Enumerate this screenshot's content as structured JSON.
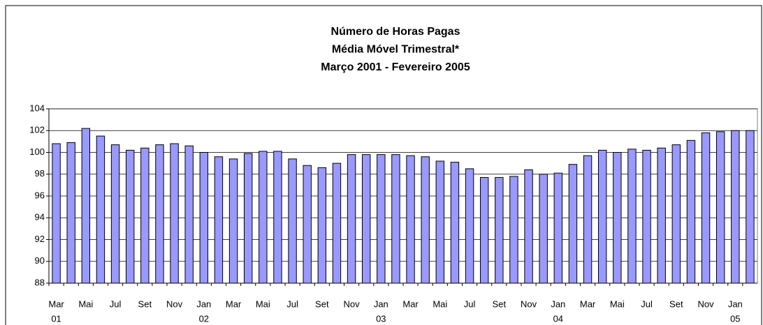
{
  "chart_data": {
    "type": "bar",
    "title_lines": [
      "Número de Horas Pagas",
      "Média Móvel Trimestral*",
      "Março 2001 - Fevereiro 2005"
    ],
    "categories": [
      "Mar",
      null,
      "Mai",
      null,
      "Jul",
      null,
      "Set",
      null,
      "Nov",
      null,
      "Jan",
      null,
      "Mar",
      null,
      "Mai",
      null,
      "Jul",
      null,
      "Set",
      null,
      "Nov",
      null,
      "Jan",
      null,
      "Mar",
      null,
      "Mai",
      null,
      "Jul",
      null,
      "Set",
      null,
      "Nov",
      null,
      "Jan",
      null,
      "Mar",
      null,
      "Mai",
      null,
      "Jul",
      null,
      "Set",
      null,
      "Nov",
      null,
      "Jan",
      null
    ],
    "category_years": [
      "01",
      null,
      null,
      null,
      null,
      null,
      null,
      null,
      null,
      null,
      "02",
      null,
      null,
      null,
      null,
      null,
      null,
      null,
      null,
      null,
      null,
      null,
      "03",
      null,
      null,
      null,
      null,
      null,
      null,
      null,
      null,
      null,
      null,
      null,
      "04",
      null,
      null,
      null,
      null,
      null,
      null,
      null,
      null,
      null,
      null,
      null,
      "05",
      null
    ],
    "values": [
      100.8,
      100.9,
      102.2,
      101.5,
      100.7,
      100.2,
      100.4,
      100.7,
      100.8,
      100.6,
      100.0,
      99.6,
      99.4,
      99.9,
      100.1,
      100.1,
      99.4,
      98.8,
      98.6,
      99.0,
      99.8,
      99.8,
      99.8,
      99.8,
      99.7,
      99.6,
      99.2,
      99.1,
      98.5,
      97.7,
      97.7,
      97.8,
      98.4,
      98.0,
      98.1,
      98.9,
      99.7,
      100.2,
      100.0,
      100.3,
      100.2,
      100.4,
      100.7,
      101.1,
      101.8,
      101.9,
      102.0,
      102.0
    ],
    "color": "#9999ff",
    "ylim": [
      88,
      104
    ],
    "yticks": [
      88,
      90,
      92,
      94,
      96,
      98,
      100,
      102,
      104
    ],
    "grid": true
  }
}
